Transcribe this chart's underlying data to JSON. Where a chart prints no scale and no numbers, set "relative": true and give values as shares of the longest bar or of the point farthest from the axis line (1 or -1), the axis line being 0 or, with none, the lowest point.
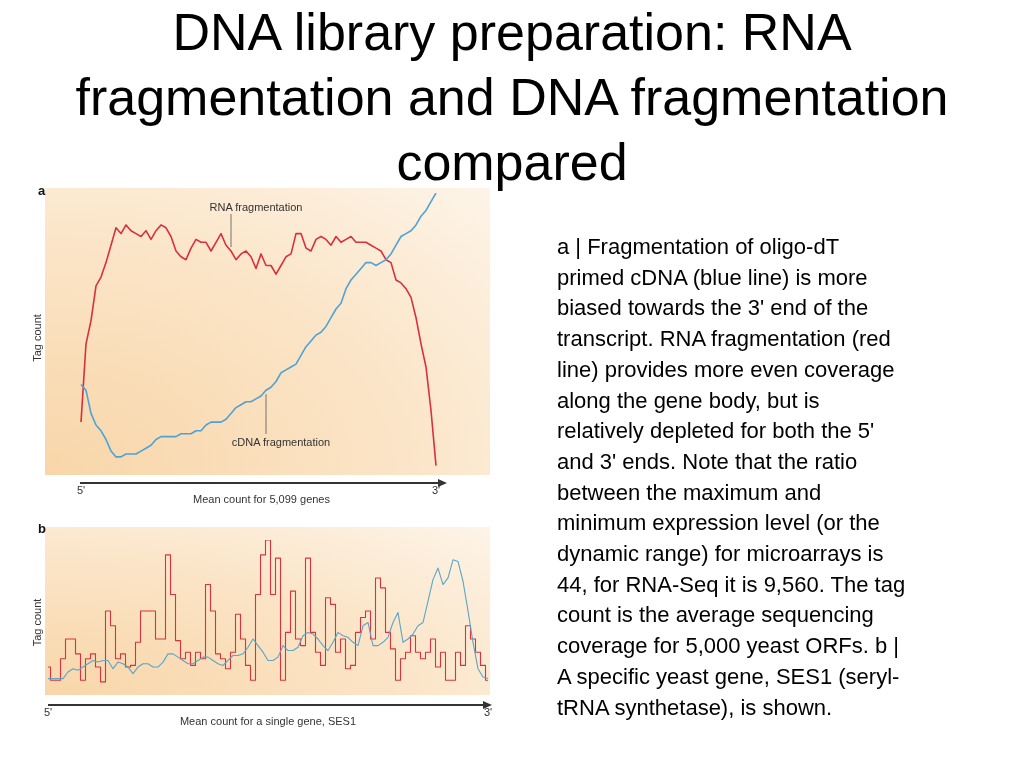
{
  "chart_data": [
    {
      "type": "line",
      "title": "DNA library preparation: RNA fragmentation and DNA fragmentation compared",
      "xlabel": "Mean count for 5,099 genes",
      "ylabel": "Tag count",
      "relative": true,
      "annotations": [
        "a",
        "a | Fragmentation of oligo-dT primed cDNA (blue line) is more biased towards the 3' end of the transcript. RNA fragmentation (red line) provides more even coverage along the gene body, but is relatively depleted for both the 5' and 3' ends. Note that the ratio between the maximum and minimum expression level (or the dynamic range) for microarrays is 44, for RNA-Seq it is 9,560. The tag count is the average sequencing coverage for 5,000 yeast ORFs. b | A specific yeast gene, SES1 (seryl-tRNA synthetase), is shown."
      ],
      "categories": [
        "5'",
        null,
        null,
        null,
        null,
        null,
        null,
        null,
        null,
        null,
        null,
        null,
        null,
        null,
        null,
        null,
        null,
        null,
        null,
        null,
        null,
        null,
        null,
        null,
        null,
        null,
        null,
        null,
        null,
        null,
        null,
        null,
        null,
        null,
        null,
        null,
        null,
        null,
        null,
        null,
        null,
        null,
        null,
        null,
        null,
        null,
        null,
        null,
        null,
        null,
        null,
        null,
        null,
        null,
        null,
        null,
        null,
        null,
        null,
        null,
        null,
        null,
        null,
        null,
        null,
        null,
        null,
        null,
        null,
        null,
        null,
        "3'"
      ],
      "series": [
        {
          "name": "RNA fragmentation",
          "color": "#d7303e",
          "values": [
            0.21,
            0.48,
            0.56,
            0.68,
            0.71,
            0.76,
            0.82,
            0.88,
            0.86,
            0.89,
            0.87,
            0.86,
            0.85,
            0.87,
            0.84,
            0.87,
            0.89,
            0.88,
            0.85,
            0.8,
            0.78,
            0.77,
            0.81,
            0.84,
            0.83,
            0.83,
            0.8,
            0.83,
            0.86,
            0.82,
            0.8,
            0.77,
            0.79,
            0.8,
            0.78,
            0.74,
            0.79,
            0.75,
            0.75,
            0.72,
            0.75,
            0.78,
            0.79,
            0.86,
            0.86,
            0.81,
            0.8,
            0.84,
            0.85,
            0.84,
            0.82,
            0.85,
            0.83,
            0.84,
            0.85,
            0.83,
            0.83,
            0.83,
            0.82,
            0.81,
            0.8,
            0.77,
            0.76,
            0.7,
            0.69,
            0.67,
            0.64,
            0.57,
            0.48,
            0.4,
            0.25,
            0.06
          ]
        },
        {
          "name": "cDNA fragmentation",
          "color": "#4ea2d6",
          "values": [
            0.34,
            0.32,
            0.24,
            0.2,
            0.18,
            0.15,
            0.11,
            0.09,
            0.09,
            0.1,
            0.1,
            0.1,
            0.11,
            0.12,
            0.13,
            0.15,
            0.16,
            0.16,
            0.16,
            0.16,
            0.17,
            0.17,
            0.17,
            0.18,
            0.18,
            0.2,
            0.21,
            0.21,
            0.21,
            0.22,
            0.24,
            0.26,
            0.27,
            0.28,
            0.28,
            0.29,
            0.3,
            0.32,
            0.33,
            0.35,
            0.38,
            0.39,
            0.4,
            0.41,
            0.44,
            0.47,
            0.49,
            0.51,
            0.52,
            0.54,
            0.57,
            0.6,
            0.62,
            0.67,
            0.7,
            0.72,
            0.74,
            0.76,
            0.76,
            0.75,
            0.76,
            0.77,
            0.79,
            0.82,
            0.85,
            0.86,
            0.87,
            0.89,
            0.92,
            0.94,
            0.97,
            1.0
          ]
        }
      ]
    },
    {
      "type": "line",
      "xlabel": "Mean count for a single gene, SES1",
      "ylabel": "Tag count",
      "relative": true,
      "annotations": [
        "b"
      ],
      "categories": [
        "5'",
        null,
        null,
        null,
        null,
        null,
        null,
        null,
        null,
        null,
        null,
        null,
        null,
        null,
        null,
        null,
        null,
        null,
        null,
        null,
        null,
        null,
        null,
        null,
        null,
        null,
        null,
        null,
        null,
        null,
        null,
        null,
        null,
        null,
        null,
        null,
        null,
        null,
        null,
        null,
        null,
        null,
        null,
        null,
        null,
        null,
        null,
        null,
        null,
        null,
        null,
        null,
        null,
        null,
        null,
        null,
        null,
        null,
        null,
        null,
        null,
        null,
        null,
        null,
        null,
        null,
        null,
        null,
        null,
        null,
        null,
        null,
        null,
        null,
        null,
        null,
        null,
        null,
        null,
        null,
        null,
        null,
        null,
        null,
        null,
        null,
        null,
        null,
        "3'"
      ],
      "series": [
        {
          "type": "step",
          "color": "#d8343f",
          "values": [
            0.23,
            0.15,
            0.15,
            0.28,
            0.4,
            0.4,
            0.31,
            0.15,
            0.28,
            0.31,
            0.23,
            0.14,
            0.57,
            0.48,
            0.28,
            0.31,
            0.23,
            0.24,
            0.38,
            0.57,
            0.57,
            0.57,
            0.4,
            0.4,
            0.91,
            0.67,
            0.39,
            0.28,
            0.32,
            0.24,
            0.32,
            0.28,
            0.73,
            0.57,
            0.31,
            0.28,
            0.22,
            0.32,
            0.55,
            0.4,
            0.24,
            0.15,
            0.67,
            0.91,
            1.0,
            0.67,
            0.89,
            0.15,
            0.44,
            0.69,
            0.4,
            0.36,
            0.89,
            0.44,
            0.32,
            0.24,
            0.65,
            0.61,
            0.32,
            0.4,
            0.22,
            0.24,
            0.44,
            0.53,
            0.57,
            0.4,
            0.77,
            0.71,
            0.44,
            0.34,
            0.15,
            0.28,
            0.32,
            0.42,
            0.32,
            0.28,
            0.32,
            0.4,
            0.23,
            0.32,
            0.15,
            0.15,
            0.32,
            0.24,
            0.48,
            0.4,
            0.32,
            0.24,
            0.15
          ]
        },
        {
          "color": "#5aa5c8",
          "values": [
            0.16,
            0.16,
            0.16,
            0.16,
            0.2,
            0.22,
            0.21,
            0.23,
            0.25,
            0.27,
            0.26,
            0.27,
            0.27,
            0.22,
            0.26,
            0.25,
            0.23,
            0.19,
            0.23,
            0.25,
            0.25,
            0.23,
            0.23,
            0.26,
            0.31,
            0.31,
            0.29,
            0.27,
            0.25,
            0.25,
            0.27,
            0.29,
            0.29,
            0.27,
            0.25,
            0.24,
            0.27,
            0.3,
            0.3,
            0.31,
            0.35,
            0.4,
            0.36,
            0.32,
            0.27,
            0.27,
            0.29,
            0.36,
            0.33,
            0.33,
            0.35,
            0.42,
            0.44,
            0.43,
            0.4,
            0.36,
            0.33,
            0.38,
            0.44,
            0.42,
            0.41,
            0.38,
            0.36,
            0.48,
            0.5,
            0.36,
            0.36,
            0.38,
            0.41,
            0.5,
            0.56,
            0.38,
            0.4,
            0.43,
            0.48,
            0.5,
            0.63,
            0.76,
            0.83,
            0.73,
            0.77,
            0.88,
            0.87,
            0.75,
            0.57,
            0.38,
            0.22,
            0.17,
            0.16
          ]
        }
      ]
    }
  ]
}
